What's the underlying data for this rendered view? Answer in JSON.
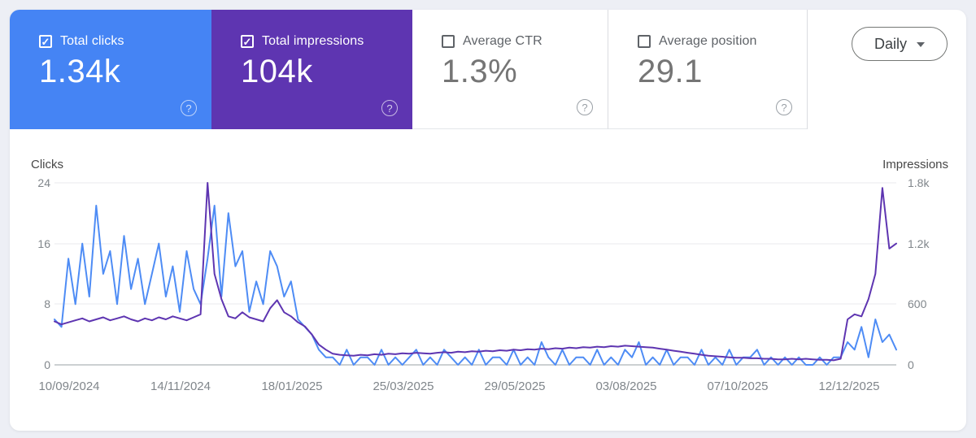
{
  "cards": [
    {
      "id": "total-clicks",
      "label": "Total clicks",
      "value": "1.34k",
      "checked": true,
      "bg": "#4584f4"
    },
    {
      "id": "total-impressions",
      "label": "Total impressions",
      "value": "104k",
      "checked": true,
      "bg": "#5e35b1"
    },
    {
      "id": "average-ctr",
      "label": "Average CTR",
      "value": "1.3%",
      "checked": false,
      "bg": "#ffffff"
    },
    {
      "id": "average-position",
      "label": "Average position",
      "value": "29.1",
      "checked": false,
      "bg": "#ffffff"
    }
  ],
  "help_icon_glyph": "?",
  "granularity": {
    "label": "Daily"
  },
  "chart": {
    "left_axis_title": "Clicks",
    "right_axis_title": "Impressions",
    "left_ticks": [
      "24",
      "16",
      "8",
      "0"
    ],
    "right_ticks": [
      "1.8k",
      "1.2k",
      "600",
      "0"
    ],
    "x_labels": [
      "10/09/2024",
      "14/11/2024",
      "18/01/2025",
      "25/03/2025",
      "29/05/2025",
      "03/08/2025",
      "07/10/2025",
      "12/12/2025"
    ]
  },
  "chart_data": {
    "type": "line",
    "title": "Search performance over time (daily)",
    "x_tick_labels": [
      "10/09/2024",
      "14/11/2024",
      "18/01/2025",
      "25/03/2025",
      "29/05/2025",
      "03/08/2025",
      "07/10/2025",
      "12/12/2025"
    ],
    "left_axis": {
      "title": "Clicks",
      "range": [
        0,
        24
      ],
      "ticks": [
        0,
        8,
        16,
        24
      ]
    },
    "right_axis": {
      "title": "Impressions",
      "range": [
        0,
        1800
      ],
      "ticks": [
        0,
        600,
        1200,
        1800
      ]
    },
    "grid": true,
    "legend_position": "none",
    "series": [
      {
        "name": "Clicks",
        "axis": "left",
        "color": "#4e8cf5",
        "total_label": "1.34k",
        "values": [
          6,
          5,
          14,
          8,
          16,
          9,
          21,
          12,
          15,
          8,
          17,
          10,
          14,
          8,
          12,
          16,
          9,
          13,
          7,
          15,
          10,
          8,
          14,
          21,
          9,
          20,
          13,
          15,
          7,
          11,
          8,
          15,
          13,
          9,
          11,
          6,
          5,
          4,
          2,
          1,
          1,
          0,
          2,
          0,
          1,
          1,
          0,
          2,
          0,
          1,
          0,
          1,
          2,
          0,
          1,
          0,
          2,
          1,
          0,
          1,
          0,
          2,
          0,
          1,
          1,
          0,
          2,
          0,
          1,
          0,
          3,
          1,
          0,
          2,
          0,
          1,
          1,
          0,
          2,
          0,
          1,
          0,
          2,
          1,
          3,
          0,
          1,
          0,
          2,
          0,
          1,
          1,
          0,
          2,
          0,
          1,
          0,
          2,
          0,
          1,
          1,
          2,
          0,
          1,
          0,
          1,
          0,
          1,
          0,
          0,
          1,
          0,
          1,
          1,
          3,
          2,
          5,
          1,
          6,
          3,
          4,
          2
        ]
      },
      {
        "name": "Impressions",
        "axis": "right",
        "color": "#5e35b1",
        "total_label": "104k",
        "values": [
          430,
          400,
          420,
          440,
          460,
          430,
          450,
          470,
          440,
          460,
          480,
          450,
          430,
          460,
          440,
          470,
          450,
          480,
          460,
          440,
          470,
          500,
          1800,
          900,
          650,
          480,
          460,
          520,
          470,
          450,
          430,
          560,
          640,
          520,
          480,
          420,
          380,
          300,
          200,
          150,
          110,
          100,
          95,
          90,
          100,
          95,
          105,
          100,
          110,
          105,
          115,
          110,
          120,
          115,
          110,
          120,
          125,
          120,
          130,
          125,
          135,
          130,
          140,
          135,
          145,
          140,
          150,
          145,
          155,
          150,
          160,
          155,
          165,
          160,
          170,
          165,
          175,
          170,
          180,
          175,
          185,
          180,
          190,
          185,
          180,
          175,
          170,
          160,
          150,
          140,
          130,
          120,
          110,
          100,
          90,
          85,
          80,
          75,
          70,
          70,
          65,
          65,
          60,
          60,
          55,
          55,
          60,
          55,
          60,
          55,
          50,
          50,
          45,
          60,
          450,
          500,
          480,
          650,
          900,
          1750,
          1150,
          1200
        ]
      }
    ]
  }
}
